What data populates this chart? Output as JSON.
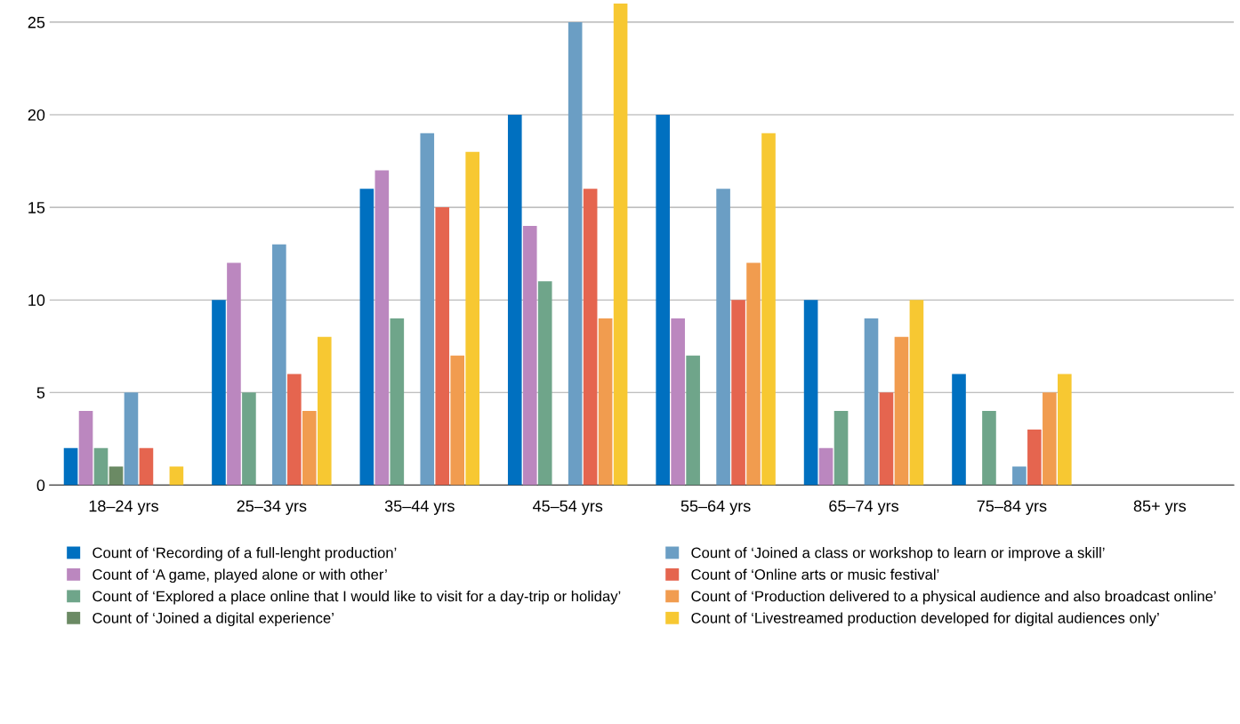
{
  "chart_data": {
    "type": "bar",
    "categories": [
      "18–24 yrs",
      "25–34 yrs",
      "35–44 yrs",
      "45–54 yrs",
      "55–64 yrs",
      "65–74 yrs",
      "75–84 yrs",
      "85+ yrs"
    ],
    "series": [
      {
        "name": "Count of ‘Recording of a full-lenght production’",
        "color": "#0070c0",
        "values": [
          2,
          10,
          16,
          20,
          20,
          10,
          6,
          0
        ]
      },
      {
        "name": "Count of ‘A game, played alone or with other’",
        "color": "#bb87bf",
        "values": [
          4,
          12,
          17,
          14,
          9,
          2,
          0,
          0
        ]
      },
      {
        "name": "Count of ‘Explored a place online that I would like to visit for a day-trip or holiday’",
        "color": "#6fa58a",
        "values": [
          2,
          5,
          9,
          11,
          7,
          4,
          4,
          0
        ]
      },
      {
        "name": "Count of ‘Joined a digital experience’",
        "color": "#6b8a64",
        "values": [
          1,
          0,
          0,
          0,
          0,
          0,
          0,
          0
        ]
      },
      {
        "name": "Count of ‘Joined a class or workshop to learn or improve a skill’",
        "color": "#6b9ec4",
        "values": [
          5,
          13,
          19,
          25,
          16,
          9,
          1,
          0
        ]
      },
      {
        "name": "Count of ‘Online arts or music festival’",
        "color": "#e5654f",
        "values": [
          2,
          6,
          15,
          16,
          10,
          5,
          3,
          0
        ]
      },
      {
        "name": "Count of ‘Production delivered to a physical audience and also broadcast online’",
        "color": "#f19c4f",
        "values": [
          0,
          4,
          7,
          9,
          12,
          8,
          5,
          0
        ]
      },
      {
        "name": "Count of ‘Livestreamed production developed for digital audiences only’",
        "color": "#f7c832",
        "values": [
          1,
          8,
          18,
          26,
          19,
          10,
          6,
          0
        ]
      }
    ],
    "ylim": [
      0,
      26
    ],
    "yticks": [
      0,
      5,
      10,
      15,
      20,
      25
    ],
    "grid": "y",
    "legend": "bottom"
  }
}
